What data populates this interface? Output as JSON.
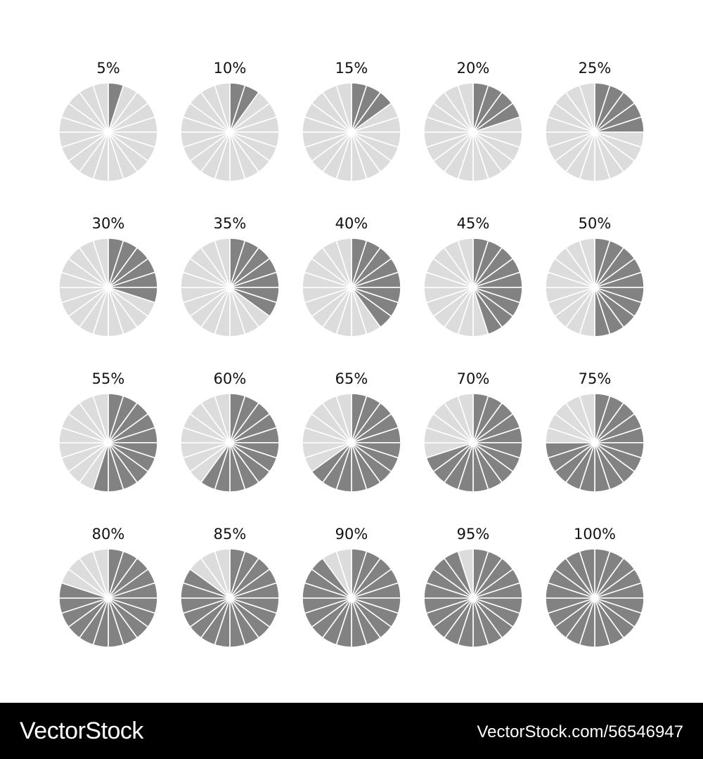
{
  "colors": {
    "filled": "#828282",
    "empty": "#dcdcdc",
    "divider": "#ffffff",
    "label": "#111111",
    "footer_bg": "#000000",
    "footer_text": "#ffffff"
  },
  "chart_data": {
    "type": "pie",
    "segments_per_pie": 20,
    "charts": [
      {
        "label": "5%",
        "value": 5
      },
      {
        "label": "10%",
        "value": 10
      },
      {
        "label": "15%",
        "value": 15
      },
      {
        "label": "20%",
        "value": 20
      },
      {
        "label": "25%",
        "value": 25
      },
      {
        "label": "30%",
        "value": 30
      },
      {
        "label": "35%",
        "value": 35
      },
      {
        "label": "40%",
        "value": 40
      },
      {
        "label": "45%",
        "value": 45
      },
      {
        "label": "50%",
        "value": 50
      },
      {
        "label": "55%",
        "value": 55
      },
      {
        "label": "60%",
        "value": 60
      },
      {
        "label": "65%",
        "value": 65
      },
      {
        "label": "70%",
        "value": 70
      },
      {
        "label": "75%",
        "value": 75
      },
      {
        "label": "80%",
        "value": 80
      },
      {
        "label": "85%",
        "value": 85
      },
      {
        "label": "90%",
        "value": 90
      },
      {
        "label": "95%",
        "value": 95
      },
      {
        "label": "100%",
        "value": 100
      }
    ]
  },
  "footer": {
    "brand": "VectorStock",
    "id_text": "VectorStock.com/56546947"
  }
}
